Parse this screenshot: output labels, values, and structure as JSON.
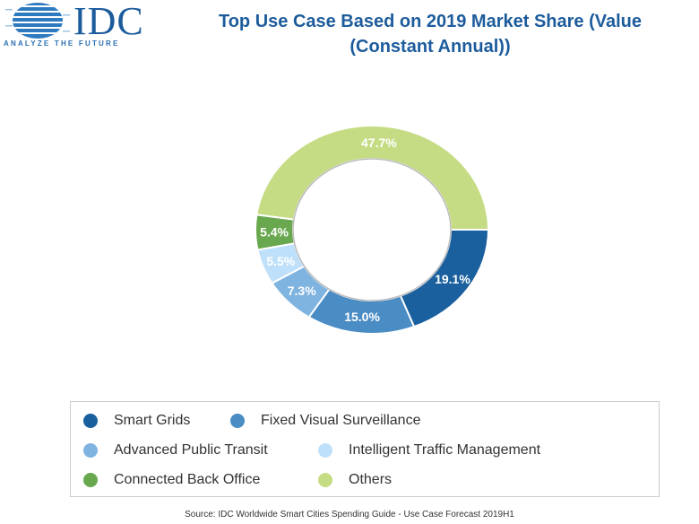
{
  "logo": {
    "name": "IDC",
    "tagline": "ANALYZE THE FUTURE"
  },
  "chart_data": {
    "type": "pie",
    "variant": "donut",
    "title": "Top Use Case Based on 2019 Market Share (Value (Constant Annual))",
    "categories": [
      "Smart Grids",
      "Fixed Visual Surveillance",
      "Advanced Public Transit",
      "Intelligent Traffic Management",
      "Connected Back Office",
      "Others"
    ],
    "values": [
      19.1,
      15.0,
      7.3,
      5.5,
      5.4,
      47.7
    ],
    "labels": [
      "19.1%",
      "15.0%",
      "7.3%",
      "5.5%",
      "5.4%",
      "47.7%"
    ],
    "colors": [
      "#1a5f9e",
      "#4a8cc4",
      "#7fb3e0",
      "#bfe0fa",
      "#6aa84f",
      "#c5dc84"
    ],
    "legend": "bottom"
  },
  "title_line1": "Top Use Case Based on 2019 Market Share (Value",
  "title_line2": "(Constant Annual))",
  "source": "Source: IDC Worldwide Smart Cities Spending Guide - Use Case Forecast 2019H1"
}
